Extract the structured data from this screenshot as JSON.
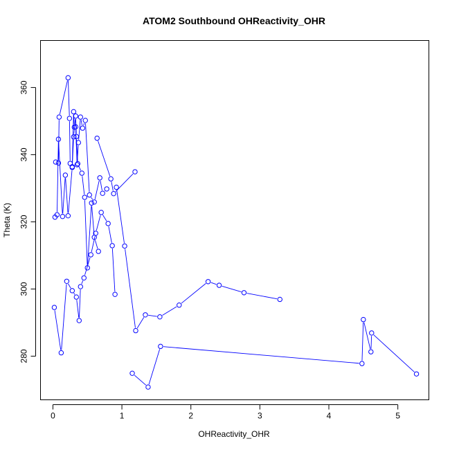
{
  "chart_data": {
    "type": "line",
    "title": "ATOM2 Southbound OHReactivity_OHR",
    "xlabel": "OHReactivity_OHR",
    "ylabel": "Theta (K)",
    "xlim": [
      -0.18,
      5.45
    ],
    "ylim": [
      267,
      374
    ],
    "x_ticks": [
      0,
      1,
      2,
      3,
      4,
      5
    ],
    "y_ticks": [
      280,
      300,
      320,
      340,
      360
    ],
    "grid": false,
    "line_color": "#0000ff",
    "marker": "open-circle",
    "series": [
      {
        "x": [
          0.02,
          0.12,
          0.2,
          0.28,
          0.34,
          0.38,
          0.4,
          0.45,
          0.55,
          0.62,
          0.7,
          0.8,
          0.86,
          0.9
        ],
        "y": [
          294.5,
          281.0,
          302.3,
          299.5,
          297.6,
          290.6,
          300.7,
          303.3,
          310.2,
          316.6,
          322.8,
          319.5,
          312.9,
          298.4
        ]
      },
      {
        "x": [
          0.03,
          0.06,
          0.08,
          0.14,
          0.18,
          0.22,
          0.28,
          0.3,
          0.33,
          0.34,
          0.36,
          0.42,
          0.46,
          0.5,
          0.56,
          0.6,
          0.66
        ],
        "y": [
          321.4,
          322.1,
          344.6,
          321.6,
          333.9,
          321.8,
          336.2,
          345.3,
          351.5,
          345.4,
          337.3,
          334.5,
          327.3,
          306.3,
          325.6,
          315.4,
          311.2
        ]
      },
      {
        "x": [
          0.04,
          0.08,
          0.09,
          0.22,
          0.24,
          0.25,
          0.28,
          0.3,
          0.31,
          0.33,
          0.35,
          0.37,
          0.4,
          0.43,
          0.47,
          0.53,
          0.6,
          0.68,
          0.72,
          0.78
        ],
        "y": [
          337.8,
          337.5,
          351.2,
          362.9,
          350.8,
          337.4,
          336.4,
          352.8,
          348.2,
          348.3,
          337.0,
          343.6,
          351.2,
          347.9,
          350.2,
          328.0,
          325.9,
          333.1,
          328.5,
          329.8
        ]
      },
      {
        "x": [
          0.92,
          1.04,
          1.2,
          1.34,
          1.55,
          1.83,
          2.25,
          2.41,
          2.77,
          3.29
        ],
        "y": [
          330.3,
          312.8,
          287.6,
          292.3,
          291.7,
          295.2,
          302.2,
          301.1,
          298.9,
          296.9
        ]
      },
      {
        "x": [
          1.15,
          1.38,
          1.56,
          4.48,
          4.5,
          4.61,
          4.62,
          5.27
        ],
        "y": [
          274.9,
          270.8,
          282.9,
          277.8,
          290.9,
          281.3,
          286.9,
          274.7
        ]
      },
      {
        "x": [
          0.64,
          0.84,
          0.88,
          1.19
        ],
        "y": [
          344.9,
          332.8,
          328.4,
          334.9
        ]
      }
    ]
  }
}
